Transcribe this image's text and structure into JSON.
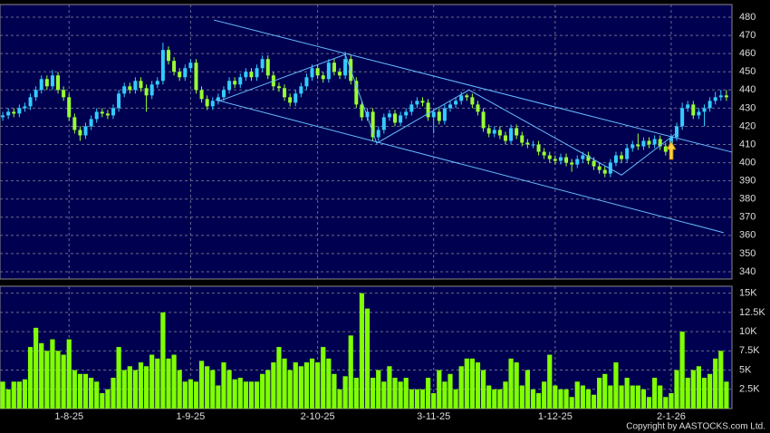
{
  "chart_data": {
    "type": "candlestick",
    "up_color": "#33ccff",
    "down_color": "#99ff33",
    "xlim": [
      -0.5,
      132
    ],
    "xticks": [
      {
        "value": 12,
        "label": "1-8-25"
      },
      {
        "value": 34,
        "label": "1-9-25"
      },
      {
        "value": 57,
        "label": "2-10-25"
      },
      {
        "value": 78,
        "label": "3-11-25"
      },
      {
        "value": 100,
        "label": "1-12-25"
      },
      {
        "value": 121,
        "label": "2-1-26"
      }
    ],
    "ylim": [
      336,
      487
    ],
    "yticks": [
      340,
      350,
      360,
      370,
      380,
      390,
      400,
      410,
      420,
      430,
      440,
      450,
      460,
      470,
      480
    ],
    "grid": true,
    "ohlc": [
      [
        425,
        428,
        423,
        426
      ],
      [
        426,
        430,
        424,
        428
      ],
      [
        428,
        430,
        425,
        427
      ],
      [
        427,
        432,
        425,
        430
      ],
      [
        430,
        433,
        428,
        431
      ],
      [
        431,
        438,
        429,
        436
      ],
      [
        436,
        442,
        434,
        440
      ],
      [
        440,
        448,
        438,
        446
      ],
      [
        446,
        448,
        440,
        442
      ],
      [
        442,
        451,
        440,
        448
      ],
      [
        448,
        450,
        438,
        440
      ],
      [
        440,
        442,
        434,
        436
      ],
      [
        436,
        438,
        423,
        425
      ],
      [
        425,
        427,
        416,
        418
      ],
      [
        418,
        420,
        412,
        415
      ],
      [
        415,
        422,
        413,
        420
      ],
      [
        420,
        426,
        418,
        424
      ],
      [
        424,
        430,
        422,
        428
      ],
      [
        428,
        430,
        425,
        427
      ],
      [
        427,
        429,
        424,
        426
      ],
      [
        426,
        432,
        424,
        430
      ],
      [
        430,
        440,
        428,
        438
      ],
      [
        438,
        444,
        436,
        442
      ],
      [
        442,
        444,
        438,
        440
      ],
      [
        440,
        447,
        438,
        445
      ],
      [
        445,
        447,
        439,
        441
      ],
      [
        441,
        443,
        428,
        437
      ],
      [
        437,
        445,
        435,
        443
      ],
      [
        443,
        447,
        441,
        445
      ],
      [
        445,
        466,
        443,
        462
      ],
      [
        462,
        464,
        454,
        456
      ],
      [
        456,
        458,
        448,
        450
      ],
      [
        450,
        452,
        445,
        447
      ],
      [
        447,
        454,
        445,
        452
      ],
      [
        452,
        457,
        450,
        455
      ],
      [
        455,
        457,
        438,
        440
      ],
      [
        440,
        442,
        433,
        435
      ],
      [
        435,
        437,
        429,
        431
      ],
      [
        431,
        436,
        429,
        434
      ],
      [
        434,
        438,
        432,
        436
      ],
      [
        436,
        442,
        434,
        440
      ],
      [
        440,
        447,
        438,
        445
      ],
      [
        445,
        447,
        441,
        443
      ],
      [
        443,
        449,
        441,
        447
      ],
      [
        447,
        452,
        445,
        450
      ],
      [
        450,
        452,
        445,
        447
      ],
      [
        447,
        454,
        445,
        452
      ],
      [
        452,
        459,
        450,
        457
      ],
      [
        457,
        459,
        446,
        448
      ],
      [
        448,
        450,
        440,
        442
      ],
      [
        442,
        444,
        439,
        441
      ],
      [
        441,
        443,
        434,
        436
      ],
      [
        436,
        438,
        431,
        433
      ],
      [
        433,
        440,
        431,
        438
      ],
      [
        438,
        444,
        436,
        442
      ],
      [
        442,
        449,
        440,
        447
      ],
      [
        447,
        454,
        445,
        452
      ],
      [
        452,
        454,
        446,
        448
      ],
      [
        448,
        450,
        444,
        446
      ],
      [
        446,
        457,
        444,
        455
      ],
      [
        455,
        457,
        448,
        450
      ],
      [
        450,
        452,
        446,
        448
      ],
      [
        448,
        461,
        446,
        457
      ],
      [
        457,
        459,
        443,
        445
      ],
      [
        445,
        447,
        430,
        432
      ],
      [
        432,
        434,
        423,
        425
      ],
      [
        425,
        430,
        423,
        428
      ],
      [
        428,
        430,
        412,
        414
      ],
      [
        414,
        420,
        412,
        418
      ],
      [
        418,
        427,
        416,
        425
      ],
      [
        425,
        429,
        423,
        427
      ],
      [
        427,
        429,
        420,
        422
      ],
      [
        422,
        428,
        420,
        426
      ],
      [
        426,
        430,
        424,
        428
      ],
      [
        428,
        434,
        426,
        432
      ],
      [
        432,
        436,
        430,
        434
      ],
      [
        434,
        436,
        431,
        433
      ],
      [
        433,
        435,
        423,
        425
      ],
      [
        425,
        430,
        416,
        428
      ],
      [
        428,
        430,
        421,
        423
      ],
      [
        423,
        432,
        421,
        430
      ],
      [
        430,
        434,
        428,
        432
      ],
      [
        432,
        436,
        430,
        434
      ],
      [
        434,
        439,
        432,
        437
      ],
      [
        437,
        438,
        434,
        436
      ],
      [
        436,
        438,
        430,
        432
      ],
      [
        432,
        434,
        426,
        428
      ],
      [
        428,
        430,
        417,
        419
      ],
      [
        419,
        421,
        414,
        416
      ],
      [
        416,
        420,
        414,
        418
      ],
      [
        418,
        420,
        413,
        415
      ],
      [
        415,
        417,
        410,
        412
      ],
      [
        412,
        421,
        410,
        419
      ],
      [
        419,
        421,
        413,
        415
      ],
      [
        415,
        417,
        409,
        411
      ],
      [
        411,
        413,
        408,
        410
      ],
      [
        410,
        412,
        408,
        410
      ],
      [
        410,
        412,
        404,
        406
      ],
      [
        406,
        408,
        402,
        404
      ],
      [
        404,
        406,
        400,
        402
      ],
      [
        402,
        404,
        399,
        401
      ],
      [
        401,
        405,
        399,
        403
      ],
      [
        403,
        405,
        398,
        400
      ],
      [
        400,
        402,
        395,
        399
      ],
      [
        399,
        404,
        397,
        402
      ],
      [
        402,
        406,
        400,
        404
      ],
      [
        404,
        406,
        399,
        401
      ],
      [
        401,
        403,
        396,
        398
      ],
      [
        398,
        400,
        394,
        396
      ],
      [
        396,
        398,
        392,
        394
      ],
      [
        394,
        402,
        392,
        400
      ],
      [
        400,
        406,
        398,
        404
      ],
      [
        404,
        406,
        400,
        402
      ],
      [
        402,
        410,
        400,
        408
      ],
      [
        408,
        412,
        406,
        410
      ],
      [
        410,
        416,
        407,
        409
      ],
      [
        409,
        414,
        407,
        412
      ],
      [
        412,
        414,
        408,
        410
      ],
      [
        410,
        415,
        408,
        413
      ],
      [
        413,
        415,
        407,
        409
      ],
      [
        409,
        411,
        404,
        406
      ],
      [
        406,
        416,
        404,
        414
      ],
      [
        414,
        422,
        412,
        420
      ],
      [
        420,
        433,
        418,
        430
      ],
      [
        430,
        434,
        428,
        432
      ],
      [
        432,
        434,
        424,
        426
      ],
      [
        426,
        430,
        424,
        428
      ],
      [
        428,
        432,
        420,
        430
      ],
      [
        430,
        436,
        428,
        434
      ],
      [
        434,
        439,
        432,
        436
      ],
      [
        436,
        440,
        434,
        437
      ],
      [
        437,
        440,
        434,
        436
      ]
    ],
    "overlays": [
      {
        "color": "#66bbff",
        "x": [
          38.2,
          132
        ],
        "y": [
          478.5,
          405.8
        ]
      },
      {
        "color": "#66bbff",
        "x": [
          38.5,
          130.5
        ],
        "y": [
          434.6,
          361.5
        ]
      },
      {
        "color": "#66bbff",
        "x": [
          39,
          62,
          67.7,
          84.4,
          112,
          122.1
        ],
        "y": [
          433.7,
          459.5,
          410.7,
          440,
          393.2,
          416.6
        ]
      }
    ],
    "volume": {
      "color": "#80ff00",
      "ylim": [
        0,
        15.9
      ],
      "yticks": [
        {
          "value": 2.5,
          "label": "2.5K"
        },
        {
          "value": 5,
          "label": "5K"
        },
        {
          "value": 7.5,
          "label": "7.5K"
        },
        {
          "value": 10,
          "label": "10K"
        },
        {
          "value": 12.5,
          "label": "12.5K"
        },
        {
          "value": 15,
          "label": "15K"
        }
      ],
      "values": [
        3.5,
        2.5,
        3.5,
        3.5,
        3.8,
        8,
        10.5,
        8.5,
        7.5,
        9,
        7.5,
        7,
        9,
        5,
        4.5,
        4.5,
        4,
        3.5,
        2,
        2.5,
        4,
        8,
        5,
        5.5,
        5,
        6,
        5.5,
        7,
        6.5,
        12.5,
        6.5,
        7,
        5,
        3.5,
        3.8,
        3.5,
        6.2,
        5.5,
        5,
        3,
        6,
        5,
        3.8,
        4,
        3.5,
        3.5,
        3.5,
        4.5,
        5,
        6,
        8,
        6.5,
        5,
        6,
        5.5,
        6,
        6.5,
        6,
        8,
        6.5,
        4.5,
        2.5,
        4.2,
        9.5,
        4,
        15,
        13,
        4,
        5,
        3.5,
        5.5,
        4,
        3.5,
        4,
        2.5,
        2.5,
        2.5,
        4,
        2,
        5,
        3.5,
        4.5,
        2.5,
        5.5,
        6.5,
        6.5,
        6,
        5,
        3,
        2.5,
        2.5,
        3.5,
        6.5,
        6,
        3,
        5,
        2.5,
        2,
        3.5,
        7,
        3,
        2.5,
        2.5,
        1.5,
        3.5,
        3,
        2.5,
        1.8,
        4,
        4.5,
        3,
        6,
        3,
        4,
        3,
        3,
        2.5,
        1.5,
        4,
        3,
        1.5,
        2,
        5,
        10,
        4,
        5,
        5.5,
        4,
        4.5,
        6.5,
        7.5,
        3.5
      ]
    },
    "copyright": "Copyright by AASTOCKS.com Ltd."
  }
}
